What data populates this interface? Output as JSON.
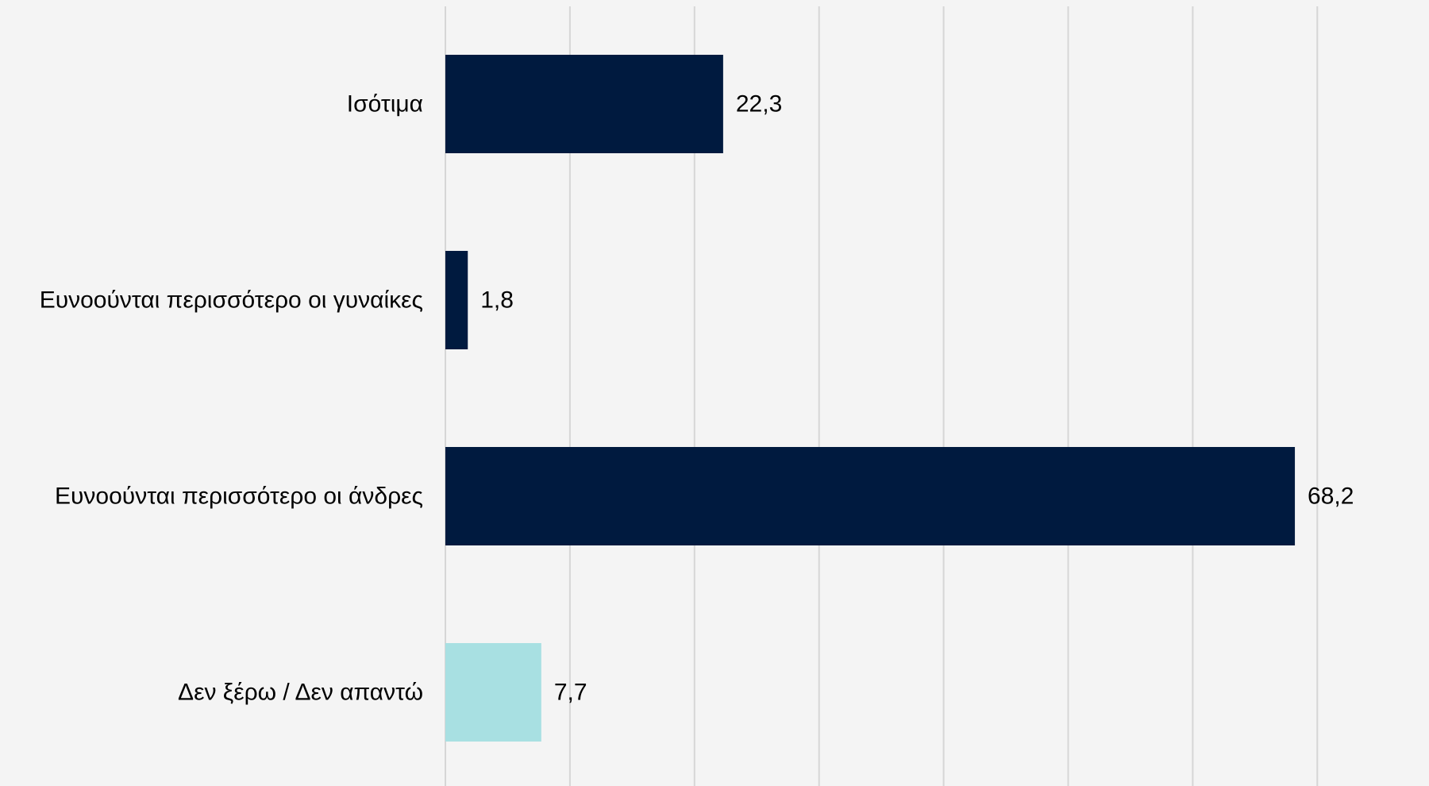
{
  "chart_data": {
    "type": "bar",
    "orientation": "horizontal",
    "categories": [
      "Ισότιμα",
      "Ευνοούνται περισσότερο οι γυναίκες",
      "Ευνοούνται περισσότερο οι άνδρες",
      "Δεν ξέρω  / Δεν απαντώ"
    ],
    "values": [
      22.3,
      1.8,
      68.2,
      7.7
    ],
    "value_labels": [
      "22,3",
      "1,8",
      "68,2",
      "7,7"
    ],
    "bar_colors": [
      "#001a3f",
      "#001a3f",
      "#001a3f",
      "#a8e0e2"
    ],
    "xlim": [
      0,
      70
    ],
    "grid": true,
    "grid_step": 10,
    "title": "",
    "xlabel": "",
    "ylabel": ""
  },
  "colors": {
    "background": "#f4f4f4",
    "grid": "#d6d6d6",
    "text": "#000000"
  }
}
